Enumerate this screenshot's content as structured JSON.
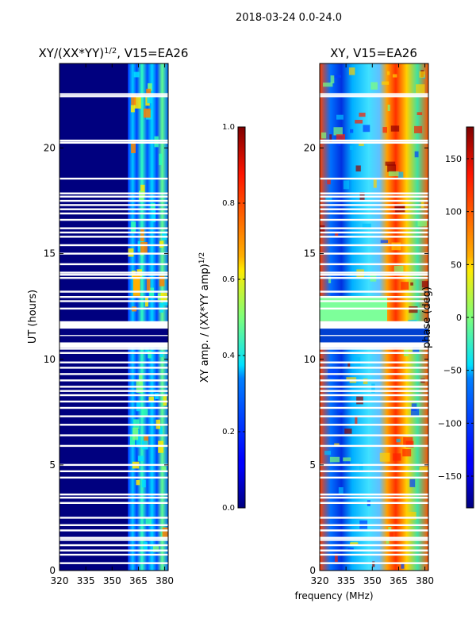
{
  "figure_title": "2018-03-24 0.0-24.0",
  "shared_xlabel": "frequency (MHz)",
  "chart_data": [
    {
      "type": "heatmap",
      "title_main": "XY/(XX*YY)",
      "title_exp": "1/2",
      "title_suffix": ", V15=EA26",
      "xlabel": "",
      "ylabel": "UT (hours)",
      "xlim": [
        320,
        382
      ],
      "ylim": [
        0,
        24
      ],
      "xticks": [
        320,
        335,
        350,
        365,
        380
      ],
      "yticks": [
        0,
        5,
        10,
        15,
        20
      ],
      "signal_band_mhz": [
        359,
        382
      ],
      "colorbar": {
        "label_main": "XY amp. / (XX*YY amp)",
        "label_exp": "1/2",
        "range": [
          0.0,
          1.0
        ],
        "ticks": [
          "0.0",
          "0.2",
          "0.4",
          "0.6",
          "0.8",
          "1.0"
        ],
        "tick_values": [
          0.0,
          0.2,
          0.4,
          0.6,
          0.8,
          1.0
        ]
      },
      "gaps_ut_hours": [
        0.35,
        0.75,
        0.95,
        1.2,
        1.45,
        1.55,
        1.9,
        2.15,
        2.5,
        3.2,
        3.45,
        3.6,
        4.4,
        4.7,
        5.0,
        5.9,
        6.4,
        6.9,
        7.3,
        7.7,
        8.0,
        8.3,
        8.5,
        8.7,
        9.0,
        9.3,
        9.6,
        9.85,
        10.3,
        10.5,
        10.6,
        10.7,
        10.95,
        11.3,
        11.5,
        11.75,
        12.4,
        12.75,
        12.95,
        13.2,
        13.85,
        14.0,
        14.1,
        14.5,
        15.0,
        15.4,
        15.8,
        16.0,
        16.2,
        16.6,
        16.9,
        17.1,
        17.3,
        17.5,
        17.7,
        17.85,
        18.55,
        20.25,
        20.35,
        22.45,
        22.55
      ]
    },
    {
      "type": "heatmap",
      "title": "XY, V15=EA26",
      "xlabel": "",
      "ylabel": "",
      "xlim": [
        320,
        382
      ],
      "ylim": [
        0,
        24
      ],
      "xticks": [
        320,
        335,
        350,
        365,
        380
      ],
      "yticks": [
        0,
        5,
        10,
        15,
        20
      ],
      "colorbar": {
        "label": "phase (deg)",
        "range": [
          -180,
          180
        ],
        "ticks": [
          "−150",
          "−100",
          "−50",
          "0",
          "50",
          "100",
          "150"
        ],
        "tick_values": [
          -150,
          -100,
          -50,
          0,
          50,
          100,
          150
        ]
      },
      "gaps_ut_hours": [
        0.35,
        0.75,
        0.95,
        1.2,
        1.45,
        1.55,
        1.9,
        2.15,
        2.5,
        3.2,
        3.45,
        3.6,
        4.4,
        4.7,
        5.0,
        5.9,
        6.4,
        6.9,
        7.3,
        7.7,
        8.0,
        8.3,
        8.5,
        8.7,
        9.0,
        9.3,
        9.6,
        9.85,
        10.3,
        10.5,
        10.6,
        10.7,
        10.95,
        11.3,
        11.5,
        11.75,
        12.4,
        12.75,
        12.95,
        13.2,
        13.85,
        14.0,
        14.1,
        14.5,
        15.0,
        15.4,
        15.8,
        16.0,
        16.2,
        16.6,
        16.9,
        17.1,
        17.3,
        17.5,
        17.7,
        17.85,
        18.55,
        20.25,
        20.35,
        22.45,
        22.55
      ]
    }
  ]
}
